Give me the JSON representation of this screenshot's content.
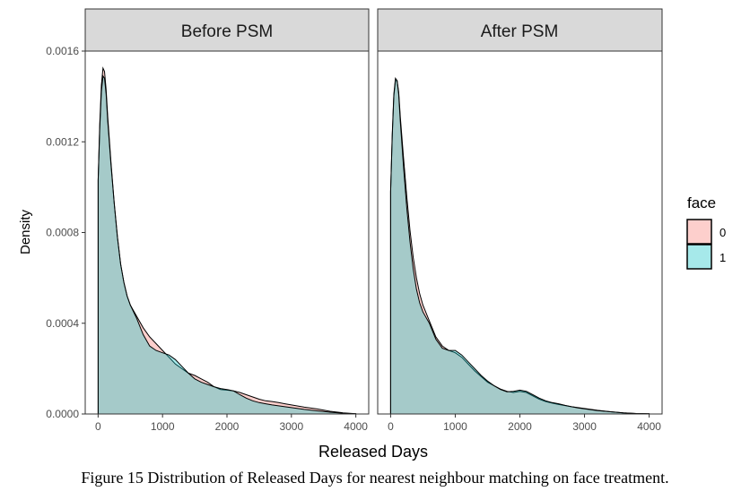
{
  "chart_data": {
    "type": "area",
    "panels": [
      {
        "title": "Before PSM",
        "series": [
          {
            "name": "0",
            "x": [
              0,
              25,
              50,
              75,
              100,
              125,
              150,
              200,
              250,
              300,
              350,
              400,
              450,
              500,
              600,
              700,
              800,
              900,
              1000,
              1100,
              1200,
              1300,
              1400,
              1500,
              1600,
              1700,
              1800,
              1900,
              2000,
              2100,
              2200,
              2300,
              2400,
              2500,
              2600,
              2700,
              2800,
              2900,
              3000,
              3200,
              3400,
              3600,
              3800,
              4000
            ],
            "y": [
              0.00103,
              0.00128,
              0.00145,
              0.001525,
              0.00151,
              0.00143,
              0.00131,
              0.00111,
              0.00093,
              0.00078,
              0.00066,
              0.00058,
              0.00052,
              0.00048,
              0.00043,
              0.00038,
              0.00034,
              0.00031,
              0.00028,
              0.00025,
              0.00022,
              0.0002,
              0.00018,
              0.00017,
              0.000155,
              0.00014,
              0.00012,
              0.000108,
              0.000105,
              0.000102,
              9.5e-05,
              8.5e-05,
              7.5e-05,
              6.5e-05,
              5.8e-05,
              5.5e-05,
              5e-05,
              4.5e-05,
              4e-05,
              3e-05,
              2.2e-05,
              1.2e-05,
              5e-06,
              1e-06
            ]
          },
          {
            "name": "1",
            "x": [
              0,
              25,
              50,
              75,
              100,
              125,
              150,
              200,
              250,
              300,
              350,
              400,
              450,
              500,
              600,
              700,
              800,
              900,
              1000,
              1100,
              1200,
              1300,
              1400,
              1500,
              1600,
              1700,
              1800,
              1900,
              2000,
              2100,
              2200,
              2300,
              2400,
              2500,
              2600,
              2700,
              2800,
              2900,
              3000,
              3200,
              3400,
              3600,
              3800,
              4000
            ],
            "y": [
              0.00103,
              0.00126,
              0.00142,
              0.00149,
              0.00148,
              0.00141,
              0.00129,
              0.0011,
              0.00093,
              0.00078,
              0.00066,
              0.00058,
              0.00052,
              0.00048,
              0.00042,
              0.00035,
              0.0003,
              0.00028,
              0.00027,
              0.00026,
              0.00024,
              0.00021,
              0.00018,
              0.000155,
              0.00014,
              0.00013,
              0.00012,
              0.000112,
              0.000108,
              0.000102,
              8.5e-05,
              7e-05,
              5.8e-05,
              5e-05,
              4.5e-05,
              4e-05,
              3.6e-05,
              3.2e-05,
              2.8e-05,
              2e-05,
              1.4e-05,
              8e-06,
              3e-06,
              1e-06
            ]
          }
        ]
      },
      {
        "title": "After PSM",
        "series": [
          {
            "name": "0",
            "x": [
              0,
              25,
              50,
              75,
              100,
              125,
              150,
              200,
              250,
              300,
              350,
              400,
              450,
              500,
              600,
              700,
              800,
              900,
              1000,
              1100,
              1200,
              1300,
              1400,
              1500,
              1600,
              1700,
              1800,
              1900,
              2000,
              2100,
              2200,
              2300,
              2400,
              2500,
              2600,
              2700,
              2800,
              2900,
              3000,
              3200,
              3400,
              3600,
              3800,
              4000
            ],
            "y": [
              0.00098,
              0.00122,
              0.0014,
              0.00147,
              0.00147,
              0.00142,
              0.00131,
              0.00113,
              0.00096,
              0.00081,
              0.00069,
              0.0006,
              0.00053,
              0.00048,
              0.00041,
              0.00034,
              0.0003,
              0.00028,
              0.00027,
              0.00025,
              0.00022,
              0.00019,
              0.000165,
              0.00014,
              0.000125,
              0.00011,
              0.0001,
              9.5e-05,
              0.0001,
              9.5e-05,
              8e-05,
              6.5e-05,
              5.5e-05,
              4.8e-05,
              4.2e-05,
              3.7e-05,
              3.2e-05,
              2.8e-05,
              2.4e-05,
              1.6e-05,
              1e-05,
              5e-06,
              2e-06,
              1e-06
            ]
          },
          {
            "name": "1",
            "x": [
              0,
              25,
              50,
              75,
              100,
              125,
              150,
              200,
              250,
              300,
              350,
              400,
              450,
              500,
              600,
              700,
              800,
              900,
              1000,
              1100,
              1200,
              1300,
              1400,
              1500,
              1600,
              1700,
              1800,
              1900,
              2000,
              2100,
              2200,
              2300,
              2400,
              2500,
              2600,
              2700,
              2800,
              2900,
              3000,
              3200,
              3400,
              3600,
              3800,
              4000
            ],
            "y": [
              0.00098,
              0.00123,
              0.00141,
              0.00148,
              0.00147,
              0.00141,
              0.00129,
              0.00109,
              0.00091,
              0.00076,
              0.00064,
              0.00055,
              0.00049,
              0.00045,
              0.0004,
              0.00033,
              0.00029,
              0.00028,
              0.00028,
              0.00026,
              0.00023,
              0.0002,
              0.00017,
              0.000145,
              0.000125,
              0.000108,
              9.8e-05,
              0.0001,
              0.000105,
              0.0001,
              8.5e-05,
              7e-05,
              5.8e-05,
              5e-05,
              4.5e-05,
              3.8e-05,
              3.2e-05,
              2.7e-05,
              2.3e-05,
              1.5e-05,
              1e-05,
              5e-06,
              2e-06,
              1e-06
            ]
          }
        ]
      }
    ],
    "xlabel": "Released Days",
    "ylabel": "Density",
    "xlim": [
      -200,
      4200
    ],
    "ylim": [
      0,
      0.0016
    ],
    "xticks": [
      0,
      1000,
      2000,
      3000,
      4000
    ],
    "xtick_labels": [
      "0",
      "1000",
      "2000",
      "3000",
      "4000"
    ],
    "yticks": [
      0,
      0.0004,
      0.0008,
      0.0012,
      0.0016
    ],
    "ytick_labels": [
      "0.0000",
      "0.0004",
      "0.0008",
      "0.0012",
      "0.0016"
    ],
    "legend": {
      "title": "face",
      "placement": "right",
      "entries": [
        "0",
        "1"
      ]
    },
    "colors": {
      "0": "#F8766D",
      "1": "#00BFC4"
    },
    "fill_opacity": 0.35,
    "grid": false
  },
  "caption": "Figure 15 Distribution of Released Days for nearest neighbour matching on face treatment."
}
